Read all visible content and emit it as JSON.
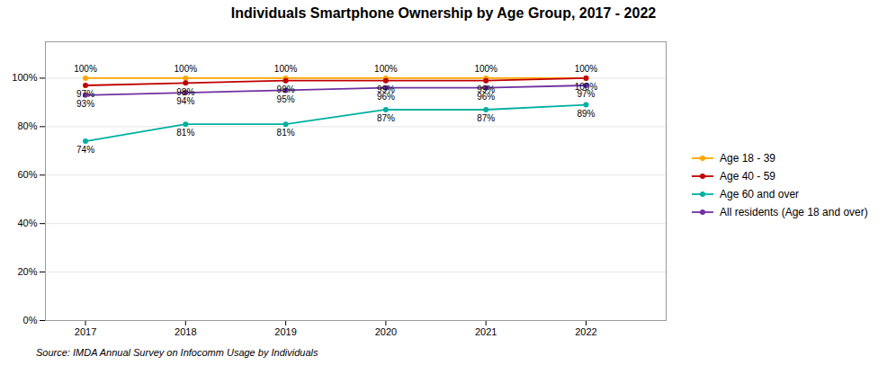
{
  "chart_data": {
    "type": "line",
    "title": "Individuals Smartphone Ownership by Age Group, 2017 - 2022",
    "source": "Source: IMDA Annual Survey on Infocomm Usage by Individuals",
    "x": [
      2017,
      2018,
      2019,
      2020,
      2021,
      2022
    ],
    "xlim": [
      2016.6,
      2022.8
    ],
    "xticks": [
      2017,
      2018,
      2019,
      2020,
      2021,
      2022
    ],
    "ylim": [
      0.0,
      1.15
    ],
    "yticks": [
      {
        "value": 0.0,
        "label": "0%"
      },
      {
        "value": 0.2,
        "label": "20%"
      },
      {
        "value": 0.4,
        "label": "40%"
      },
      {
        "value": 0.6,
        "label": "60%"
      },
      {
        "value": 0.8,
        "label": "80%"
      },
      {
        "value": 1.0,
        "label": "100%"
      }
    ],
    "grid": true,
    "legend": "right",
    "marker": "circle",
    "data_labels": true,
    "series": [
      {
        "name": "Age 18 - 39",
        "color": "#FFA500",
        "values": [
          1.0,
          1.0,
          1.0,
          1.0,
          1.0,
          1.0
        ],
        "value_labels": [
          "100%",
          "100%",
          "100%",
          "100%",
          "100%",
          "100%"
        ]
      },
      {
        "name": "Age 40 - 59",
        "color": "#C00000",
        "values": [
          0.97,
          0.98,
          0.99,
          0.99,
          0.99,
          1.0
        ],
        "value_labels": [
          "97%",
          "98%",
          "99%",
          "99%",
          "99%",
          "100%"
        ]
      },
      {
        "name": "Age 60 and over",
        "color": "#00B0A0",
        "values": [
          0.74,
          0.81,
          0.81,
          0.87,
          0.87,
          0.89
        ],
        "value_labels": [
          "74%",
          "81%",
          "81%",
          "87%",
          "87%",
          "89%"
        ]
      },
      {
        "name": "All residents (Age 18 and over)",
        "color": "#7030A0",
        "values": [
          0.93,
          0.94,
          0.95,
          0.96,
          0.96,
          0.97
        ],
        "value_labels": [
          "93%",
          "94%",
          "95%",
          "96%",
          "96%",
          "97%"
        ]
      }
    ]
  }
}
